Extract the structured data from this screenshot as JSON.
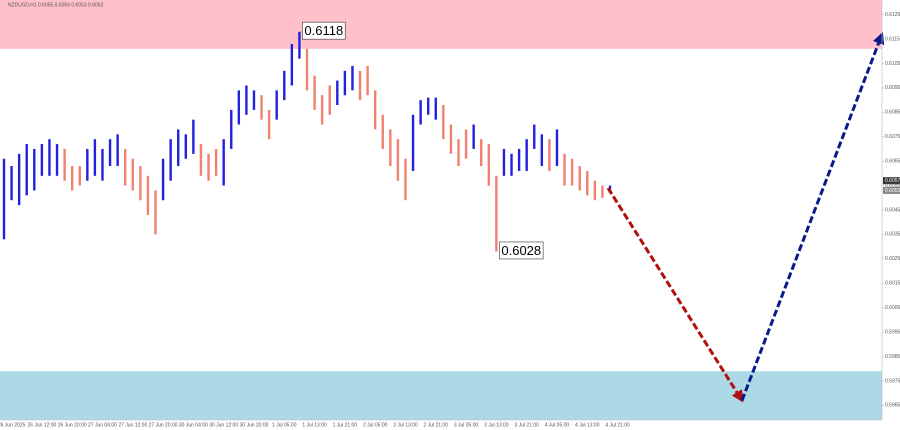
{
  "chart_data": {
    "type": "price-bars",
    "symbol_info": "NZDUSD,H1  0.6055 0.6056 0.6053 0.6053",
    "categories": [
      null,
      "26 Jun 2025",
      null,
      null,
      null,
      "26 Jun 12:00",
      null,
      null,
      null,
      "26 Jun 20:00",
      null,
      null,
      null,
      "27 Jun 04:00",
      null,
      null,
      null,
      "27 Jun 12:00",
      null,
      null,
      null,
      "27 Jun 20:00",
      null,
      null,
      null,
      "30 Jun 04:00",
      null,
      null,
      null,
      "30 Jun 12:00",
      null,
      null,
      null,
      "30 Jun 20:00",
      null,
      null,
      null,
      "1 Jul 05:00",
      null,
      null,
      null,
      "1 Jul 13:00",
      null,
      null,
      null,
      "1 Jul 21:00",
      null,
      null,
      null,
      "2 Jul 05:00",
      null,
      null,
      null,
      "2 Jul 13:00",
      null,
      null,
      null,
      "2 Jul 21:00",
      null,
      null,
      null,
      "3 Jul 05:00",
      null,
      null,
      null,
      "3 Jul 13:00",
      null,
      null,
      null,
      "3 Jul 21:00",
      null,
      null,
      null,
      "4 Jul 05:00",
      null,
      null,
      null,
      "4 Jul 13:00",
      null,
      null,
      null,
      "4 Jul 21:00"
    ],
    "high": [
      0.6066,
      0.6063,
      0.6068,
      0.6072,
      0.607,
      0.6072,
      0.6074,
      0.6072,
      0.607,
      0.6063,
      0.6063,
      0.607,
      0.6074,
      0.607,
      0.6074,
      0.6076,
      0.607,
      0.6066,
      0.6063,
      0.6059,
      0.6053,
      0.6066,
      0.6074,
      0.6078,
      0.6076,
      0.6082,
      0.6072,
      0.6068,
      0.607,
      0.6074,
      0.6086,
      0.6094,
      0.6096,
      0.6094,
      0.6092,
      0.6086,
      0.6094,
      0.6102,
      0.6113,
      0.6118,
      0.6111,
      0.61,
      0.6092,
      0.6096,
      0.6098,
      0.6102,
      0.6104,
      0.6102,
      0.6104,
      0.6094,
      0.6084,
      0.6078,
      0.6074,
      0.6066,
      0.6084,
      0.609,
      0.6091,
      0.6091,
      0.6088,
      0.608,
      0.6074,
      0.6078,
      0.608,
      0.6074,
      0.6072,
      0.6059,
      0.607,
      0.6068,
      0.607,
      0.6074,
      0.608,
      0.6076,
      0.6074,
      0.6078,
      0.6068,
      0.6066,
      0.6063,
      0.6061,
      0.6057,
      0.6055,
      0.6055,
      null
    ],
    "low": [
      0.6033,
      0.6049,
      0.6047,
      0.6051,
      0.6053,
      0.6059,
      0.6059,
      0.6059,
      0.6057,
      0.6053,
      0.6055,
      0.6057,
      0.6059,
      0.6057,
      0.6063,
      0.6063,
      0.6055,
      0.6053,
      0.6049,
      0.6043,
      0.6035,
      0.6049,
      0.6057,
      0.6063,
      0.6066,
      0.6068,
      0.6059,
      0.6057,
      0.6059,
      0.6055,
      0.607,
      0.608,
      0.6084,
      0.6086,
      0.6082,
      0.6074,
      0.6082,
      0.609,
      0.6096,
      0.6107,
      0.6094,
      0.6086,
      0.608,
      0.6084,
      0.6088,
      0.6092,
      0.6094,
      0.609,
      0.6092,
      0.6078,
      0.607,
      0.6063,
      0.6057,
      0.6049,
      0.6061,
      0.608,
      0.6084,
      0.6082,
      0.6074,
      0.6068,
      0.6063,
      0.6066,
      0.607,
      0.6063,
      0.6055,
      0.6028,
      0.6059,
      0.6059,
      0.6061,
      0.6061,
      0.607,
      0.6063,
      0.6061,
      0.6063,
      0.6055,
      0.6055,
      0.6053,
      0.6051,
      0.6049,
      0.605,
      0.6052,
      null
    ],
    "up_color": "#2222dd",
    "down_color": "#f08070",
    "ylim": [
      0.5959,
      0.6131
    ],
    "yticks": [
      0.6125,
      0.6115,
      0.6105,
      0.6095,
      0.6085,
      0.6075,
      0.6065,
      0.6055,
      0.6045,
      0.6035,
      0.6025,
      0.6015,
      0.6005,
      0.5995,
      0.5985,
      0.5975,
      0.5965
    ],
    "annotations": [
      0.6118,
      0.6028
    ],
    "price_labels": [
      0.6057,
      0.6053
    ],
    "zones": [
      {
        "color": "#ffc0cb",
        "from": 0.6111,
        "to": 0.6131
      },
      {
        "color": "#add8e6",
        "from": 0.5959,
        "to": 0.5979
      }
    ],
    "forecast": [
      {
        "color": "#b01010",
        "from": 0.6054,
        "to": 0.5967
      },
      {
        "color": "#0a1a8a",
        "from": 0.5967,
        "to": 0.6117
      }
    ]
  }
}
